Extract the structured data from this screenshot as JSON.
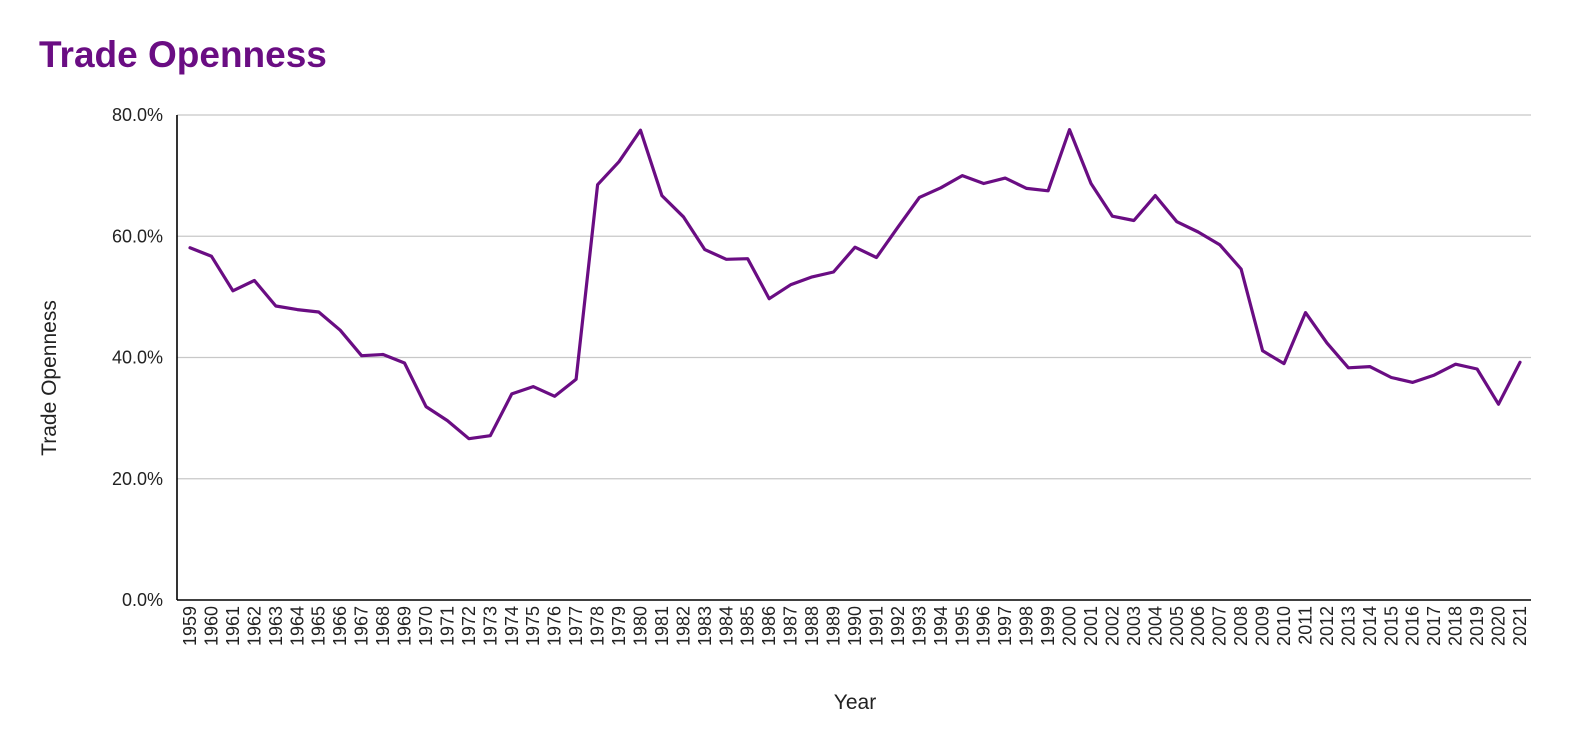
{
  "colors": {
    "title": "#6a0d83",
    "line": "#6a0d83",
    "grid": "#c8c8c8",
    "axis": "#000000",
    "text": "#222222"
  },
  "chart_data": {
    "type": "line",
    "title": "Trade Openness",
    "xlabel": "Year",
    "ylabel": "Trade Openness",
    "ylim": [
      0,
      80
    ],
    "yticks": [
      "0.0%",
      "20.0%",
      "40.0%",
      "60.0%",
      "80.0%"
    ],
    "ytick_values": [
      0,
      20,
      40,
      60,
      80
    ],
    "grid": true,
    "legend": "none",
    "x": [
      "1959",
      "1960",
      "1961",
      "1962",
      "1963",
      "1964",
      "1965",
      "1966",
      "1967",
      "1968",
      "1969",
      "1970",
      "1971",
      "1972",
      "1973",
      "1974",
      "1975",
      "1976",
      "1977",
      "1978",
      "1979",
      "1980",
      "1981",
      "1982",
      "1983",
      "1984",
      "1985",
      "1986",
      "1987",
      "1988",
      "1989",
      "1990",
      "1991",
      "1992",
      "1993",
      "1994",
      "1995",
      "1996",
      "1997",
      "1998",
      "1999",
      "2000",
      "2001",
      "2002",
      "2003",
      "2004",
      "2005",
      "2006",
      "2007",
      "2008",
      "2009",
      "2010",
      "2011",
      "2012",
      "2013",
      "2014",
      "2015",
      "2016",
      "2017",
      "2018",
      "2019",
      "2020",
      "2021"
    ],
    "series": [
      {
        "values": [
          58.1,
          56.7,
          51.0,
          52.7,
          48.5,
          47.9,
          47.5,
          44.5,
          40.3,
          40.5,
          39.1,
          31.9,
          29.6,
          26.6,
          27.1,
          34.0,
          35.2,
          33.6,
          36.4,
          68.5,
          72.3,
          77.5,
          66.7,
          63.2,
          57.8,
          56.2,
          56.3,
          49.7,
          52.0,
          53.3,
          54.1,
          58.2,
          56.5,
          61.5,
          66.4,
          68.0,
          70.0,
          68.7,
          69.6,
          67.9,
          67.5,
          77.6,
          68.7,
          63.3,
          62.6,
          66.7,
          62.4,
          60.7,
          58.6,
          54.6,
          41.1,
          39.0,
          47.4,
          42.4,
          38.3,
          38.5,
          36.7,
          35.9,
          37.1,
          38.9,
          38.1,
          32.3,
          39.2
        ]
      }
    ]
  }
}
